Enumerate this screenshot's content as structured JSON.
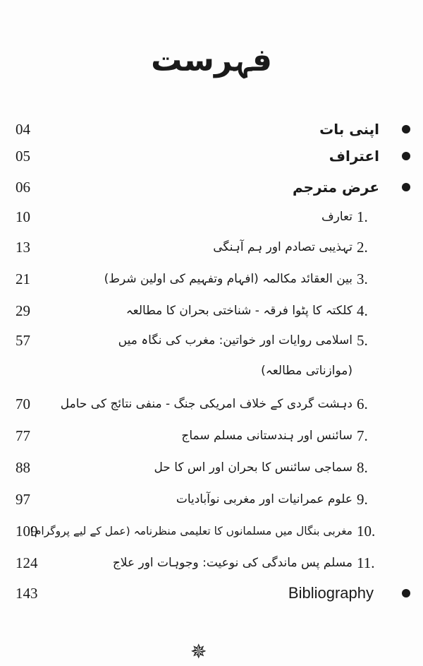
{
  "title": "فہرست",
  "front_matter": [
    {
      "label": "اپنی بات",
      "page": "04"
    },
    {
      "label": "اعتراف",
      "page": "05"
    },
    {
      "label": "عرض مترجم",
      "page": "06"
    }
  ],
  "chapters": [
    {
      "number": "1.",
      "label": "تعارف",
      "page": "10"
    },
    {
      "number": "2.",
      "label": "تہذیبی تصادم اور ہم آہنگی",
      "page": "13"
    },
    {
      "number": "3.",
      "label": "بین العقائد مکالمہ (افہام وتفہیم کی اولین شرط)",
      "page": "21"
    },
    {
      "number": "4.",
      "label": "کلکتہ کا پٹوا فرقہ - شناختی بحران کا مطالعہ",
      "page": "29"
    },
    {
      "number": "5.",
      "label": "اسلامی روایات اور خواتین: مغرب کی نگاہ میں",
      "label_line2": "(موازناتی مطالعہ)",
      "page": "57"
    },
    {
      "number": "6.",
      "label": "دہشت گردی کے خلاف امریکی جنگ - منفی نتائج کی حامل",
      "page": "70"
    },
    {
      "number": "7.",
      "label": "سائنس اور ہندستانی مسلم سماج",
      "page": "77"
    },
    {
      "number": "8.",
      "label": "سماجی سائنس کا بحران اور اس کا حل",
      "page": "88"
    },
    {
      "number": "9.",
      "label": "علوم عمرانیات اور مغربی نوآبادیات",
      "page": "97"
    },
    {
      "number": "10.",
      "label": "مغربی بنگال میں مسلمانوں کا تعلیمی منظرنامہ (عمل کے لیے پروگرام)",
      "page": "109"
    },
    {
      "number": "11.",
      "label": "مسلم پس ماندگی کی نوعیت: وجوہات اور علاج",
      "page": "124"
    }
  ],
  "bibliography": {
    "label": "Bibliography",
    "page": "143"
  },
  "ornament_icon": "eight-point-star"
}
